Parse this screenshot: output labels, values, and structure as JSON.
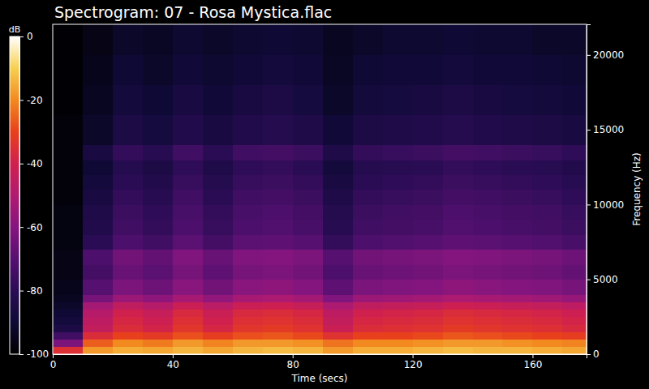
{
  "chart_data": {
    "type": "heatmap",
    "title": "Spectrogram: 07 - Rosa Mystica.flac",
    "x_label": "Time (secs)",
    "y_label": "Frequency (Hz)",
    "x": [
      0,
      10,
      20,
      30,
      40,
      50,
      60,
      70,
      80,
      90,
      100,
      110,
      120,
      130,
      140,
      150,
      160,
      170
    ],
    "y": [
      0,
      500,
      1000,
      1500,
      2000,
      2500,
      3000,
      3500,
      4000,
      5000,
      6000,
      7000,
      8000,
      9000,
      10000,
      11000,
      12000,
      13000,
      14000,
      16000,
      18000,
      20000
    ],
    "xlim": [
      0,
      178
    ],
    "ylim": [
      0,
      22050
    ],
    "xticks": [
      0,
      40,
      80,
      120,
      160
    ],
    "yticks": [
      0,
      5000,
      10000,
      15000,
      20000
    ],
    "values": [
      [
        -35,
        -18,
        -15,
        -16,
        -14,
        -16,
        -14,
        -13,
        -14,
        -18,
        -15,
        -15,
        -14,
        -13,
        -14,
        -14,
        -15,
        -16
      ],
      [
        -62,
        -26,
        -20,
        -22,
        -18,
        -21,
        -18,
        -18,
        -19,
        -23,
        -20,
        -20,
        -19,
        -18,
        -18,
        -19,
        -20,
        -21
      ],
      [
        -75,
        -36,
        -30,
        -32,
        -28,
        -31,
        -28,
        -27,
        -29,
        -34,
        -30,
        -30,
        -29,
        -27,
        -28,
        -29,
        -30,
        -31
      ],
      [
        -85,
        -44,
        -36,
        -39,
        -33,
        -38,
        -33,
        -32,
        -34,
        -42,
        -36,
        -35,
        -34,
        -32,
        -33,
        -34,
        -35,
        -37
      ],
      [
        -88,
        -46,
        -38,
        -41,
        -35,
        -40,
        -35,
        -34,
        -36,
        -44,
        -38,
        -37,
        -36,
        -34,
        -35,
        -36,
        -37,
        -39
      ],
      [
        -90,
        -48,
        -40,
        -43,
        -37,
        -42,
        -37,
        -36,
        -38,
        -46,
        -40,
        -39,
        -38,
        -36,
        -37,
        -38,
        -39,
        -41
      ],
      [
        -92,
        -53,
        -45,
        -48,
        -42,
        -47,
        -42,
        -41,
        -43,
        -51,
        -45,
        -44,
        -43,
        -41,
        -42,
        -43,
        -44,
        -46
      ],
      [
        -94,
        -63,
        -55,
        -58,
        -52,
        -57,
        -52,
        -51,
        -53,
        -61,
        -55,
        -54,
        -53,
        -51,
        -52,
        -53,
        -54,
        -56
      ],
      [
        -95,
        -70,
        -62,
        -65,
        -59,
        -64,
        -59,
        -58,
        -60,
        -68,
        -62,
        -61,
        -60,
        -58,
        -59,
        -60,
        -61,
        -63
      ],
      [
        -96,
        -74,
        -66,
        -69,
        -63,
        -68,
        -63,
        -62,
        -64,
        -72,
        -66,
        -65,
        -64,
        -62,
        -63,
        -64,
        -65,
        -67
      ],
      [
        -96,
        -72,
        -64,
        -67,
        -61,
        -66,
        -61,
        -60,
        -62,
        -70,
        -64,
        -63,
        -62,
        -60,
        -61,
        -62,
        -63,
        -65
      ],
      [
        -97,
        -80,
        -72,
        -75,
        -69,
        -74,
        -69,
        -68,
        -70,
        -78,
        -72,
        -71,
        -70,
        -68,
        -69,
        -70,
        -71,
        -73
      ],
      [
        -97,
        -83,
        -75,
        -78,
        -72,
        -77,
        -72,
        -71,
        -73,
        -81,
        -75,
        -74,
        -73,
        -71,
        -72,
        -73,
        -74,
        -76
      ],
      [
        -97,
        -84,
        -76,
        -79,
        -73,
        -78,
        -73,
        -72,
        -74,
        -82,
        -76,
        -75,
        -74,
        -72,
        -73,
        -74,
        -75,
        -77
      ],
      [
        -98,
        -86,
        -78,
        -81,
        -75,
        -80,
        -75,
        -74,
        -76,
        -84,
        -78,
        -77,
        -76,
        -74,
        -75,
        -76,
        -77,
        -79
      ],
      [
        -98,
        -88,
        -80,
        -83,
        -77,
        -82,
        -77,
        -76,
        -78,
        -86,
        -80,
        -79,
        -78,
        -76,
        -77,
        -78,
        -79,
        -81
      ],
      [
        -98,
        -90,
        -82,
        -85,
        -79,
        -84,
        -79,
        -78,
        -80,
        -88,
        -82,
        -81,
        -80,
        -78,
        -79,
        -80,
        -81,
        -83
      ],
      [
        -98,
        -86,
        -78,
        -81,
        -75,
        -80,
        -75,
        -74,
        -76,
        -84,
        -78,
        -77,
        -76,
        -74,
        -75,
        -76,
        -77,
        -79
      ],
      [
        -98,
        -92,
        -85,
        -87,
        -83,
        -86,
        -83,
        -82,
        -84,
        -89,
        -85,
        -84,
        -83,
        -82,
        -83,
        -84,
        -85,
        -86
      ],
      [
        -99,
        -94,
        -88,
        -90,
        -86,
        -89,
        -86,
        -85,
        -87,
        -92,
        -88,
        -87,
        -86,
        -85,
        -86,
        -87,
        -88,
        -89
      ],
      [
        -99,
        -95,
        -90,
        -92,
        -89,
        -91,
        -89,
        -88,
        -89,
        -93,
        -90,
        -89,
        -89,
        -88,
        -89,
        -89,
        -90,
        -91
      ],
      [
        -99,
        -96,
        -92,
        -93,
        -91,
        -92,
        -91,
        -90,
        -91,
        -94,
        -92,
        -91,
        -91,
        -90,
        -91,
        -91,
        -92,
        -92
      ]
    ],
    "colorbar": {
      "label": "dB",
      "range": [
        -100,
        0
      ],
      "ticks": [
        -100,
        -80,
        -60,
        -40,
        -20,
        0
      ]
    }
  }
}
